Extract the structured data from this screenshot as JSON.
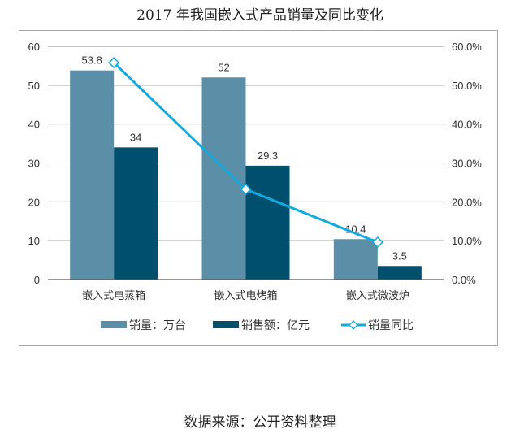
{
  "title": "2017 年我国嵌入式产品销量及同比变化",
  "source": "数据来源：公开资料整理",
  "colors": {
    "sales_volume": "#5b8fa8",
    "sales_amount": "#004f6e",
    "yoy_line": "#14a9dd",
    "grid": "#868686",
    "frame": "#a6a6a6"
  },
  "legend": [
    {
      "name": "销量：万台",
      "type": "bar",
      "color": "#5b8fa8"
    },
    {
      "name": "销售额：亿元",
      "type": "bar",
      "color": "#004f6e"
    },
    {
      "name": "销量同比",
      "type": "line",
      "color": "#14a9dd"
    }
  ],
  "axes": {
    "left_ticks": [
      "0",
      "10",
      "20",
      "30",
      "40",
      "50",
      "60"
    ],
    "right_ticks": [
      "0.0%",
      "10.0%",
      "20.0%",
      "30.0%",
      "40.0%",
      "50.0%",
      "60.0%"
    ]
  },
  "chart_data": {
    "type": "bar",
    "title": "2017 年我国嵌入式产品销量及同比变化",
    "categories": [
      "嵌入式电蒸箱",
      "嵌入式电烤箱",
      "嵌入式微波炉"
    ],
    "series": [
      {
        "name": "销量：万台",
        "type": "bar",
        "axis": "left",
        "values": [
          53.8,
          52,
          10.4
        ],
        "labels": [
          "53.8",
          "52",
          "10.4"
        ]
      },
      {
        "name": "销售额：亿元",
        "type": "bar",
        "axis": "left",
        "values": [
          34,
          29.3,
          3.5
        ],
        "labels": [
          "34",
          "29.3",
          "3.5"
        ]
      },
      {
        "name": "销量同比",
        "type": "line",
        "axis": "right",
        "values": [
          55.8,
          23.2,
          9.6
        ],
        "unit": "%"
      }
    ],
    "xlabel": "",
    "ylabel": "",
    "ylim": [
      0,
      60
    ],
    "y2lim": [
      0,
      60
    ],
    "y2_format": "percent",
    "grid": true,
    "legend_position": "bottom",
    "source": "数据来源：公开资料整理"
  }
}
